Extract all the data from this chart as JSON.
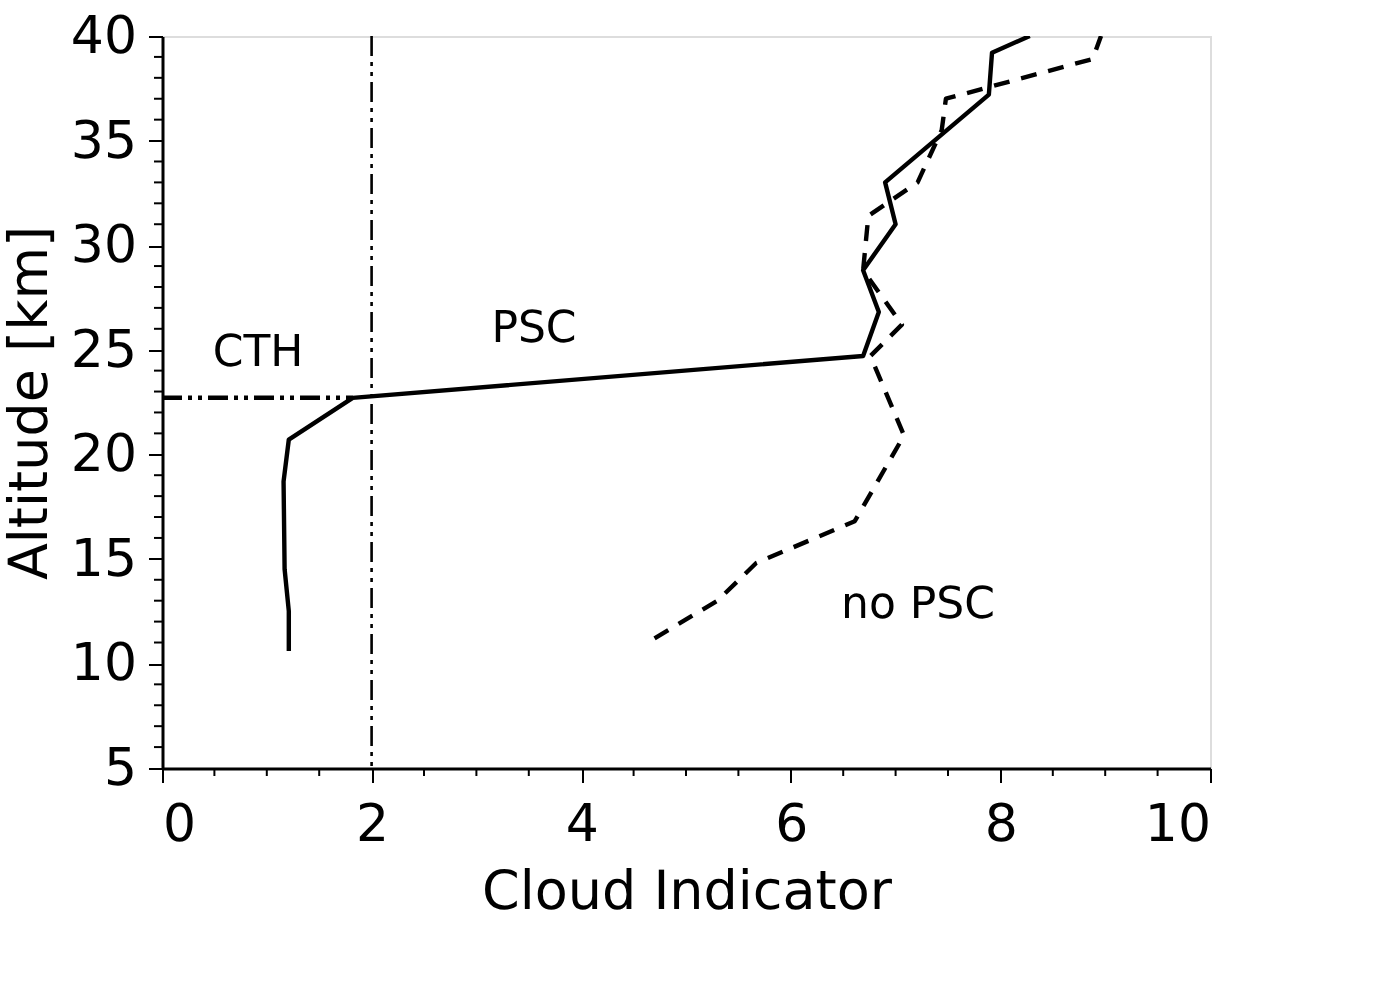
{
  "chart_data": {
    "type": "line",
    "xlabel": "Cloud Indicator",
    "ylabel": "Altitude [km]",
    "xlim": [
      0,
      10
    ],
    "ylim": [
      5,
      40
    ],
    "xticks": [
      0,
      {
        "value": 0.5,
        "label": null
      },
      {
        "value": 1,
        "label": null
      },
      {
        "value": 1.5,
        "label": null
      },
      2,
      {
        "value": 2.5,
        "label": null
      },
      {
        "value": 3,
        "label": null
      },
      {
        "value": 3.5,
        "label": null
      },
      4,
      {
        "value": 4.5,
        "label": null
      },
      {
        "value": 5,
        "label": null
      },
      {
        "value": 5.5,
        "label": null
      },
      6,
      {
        "value": 6.5,
        "label": null
      },
      {
        "value": 7,
        "label": null
      },
      {
        "value": 7.5,
        "label": null
      },
      8,
      {
        "value": 8.5,
        "label": null
      },
      {
        "value": 9,
        "label": null
      },
      {
        "value": 9.5,
        "label": null
      },
      10
    ],
    "yticks": [
      5,
      {
        "value": 6,
        "label": null
      },
      {
        "value": 7,
        "label": null
      },
      {
        "value": 8,
        "label": null
      },
      {
        "value": 9,
        "label": null
      },
      10,
      {
        "value": 11,
        "label": null
      },
      {
        "value": 12,
        "label": null
      },
      {
        "value": 13,
        "label": null
      },
      {
        "value": 14,
        "label": null
      },
      15,
      {
        "value": 16,
        "label": null
      },
      {
        "value": 17,
        "label": null
      },
      {
        "value": 18,
        "label": null
      },
      {
        "value": 19,
        "label": null
      },
      20,
      {
        "value": 21,
        "label": null
      },
      {
        "value": 22,
        "label": null
      },
      {
        "value": 23,
        "label": null
      },
      {
        "value": 24,
        "label": null
      },
      25,
      {
        "value": 26,
        "label": null
      },
      {
        "value": 27,
        "label": null
      },
      {
        "value": 28,
        "label": null
      },
      {
        "value": 29,
        "label": null
      },
      30,
      {
        "value": 31,
        "label": null
      },
      {
        "value": 32,
        "label": null
      },
      {
        "value": 33,
        "label": null
      },
      {
        "value": 34,
        "label": null
      },
      35,
      {
        "value": 36,
        "label": null
      },
      {
        "value": 37,
        "label": null
      },
      {
        "value": 38,
        "label": null
      },
      {
        "value": 39,
        "label": null
      },
      40
    ],
    "grid": false,
    "marker": "none",
    "series": [
      {
        "color": "#000000",
        "line_style": "solid",
        "x": [
          1.21,
          1.21,
          1.17,
          1.16,
          1.21,
          1.82,
          6.69,
          6.84,
          6.69,
          7.0,
          6.9,
          7.89,
          7.92,
          8.28
        ],
        "values": [
          10.6,
          12.5,
          14.5,
          18.7,
          20.7,
          22.7,
          24.7,
          26.8,
          28.8,
          31.0,
          33.0,
          37.2,
          39.2,
          40.0
        ]
      },
      {
        "color": "#000000",
        "line_style": "dashed",
        "x": [
          4.7,
          5.3,
          5.67,
          6.61,
          7.08,
          6.76,
          7.06,
          6.69,
          6.74,
          7.21,
          7.44,
          7.48,
          8.88,
          8.96
        ],
        "values": [
          11.2,
          13.0,
          14.8,
          16.8,
          20.9,
          24.7,
          26.2,
          28.8,
          31.4,
          33.0,
          35.5,
          37.0,
          38.9,
          40.0
        ]
      },
      {
        "color": "#000000",
        "line_style": "dashdot",
        "x": [
          0,
          1.82
        ],
        "values": [
          22.7,
          22.7
        ]
      }
    ],
    "ref_lines": [
      {
        "axis": "x",
        "value": 2,
        "color": "#000000",
        "line_style": "dashdot"
      }
    ],
    "annotations": [
      "PSC",
      "no PSC",
      "CTH"
    ]
  }
}
